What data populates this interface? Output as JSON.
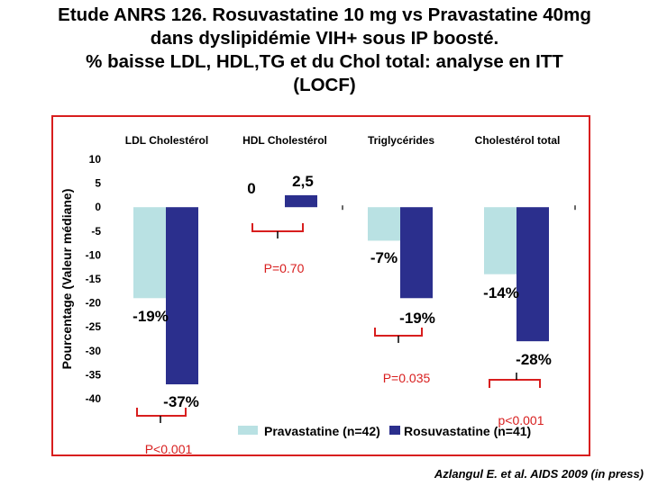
{
  "title": {
    "line1": "Etude ANRS 126. Rosuvastatine 10 mg vs Pravastatine 40mg",
    "line2": "dans dyslipidémie VIH+ sous IP boosté.",
    "line3": "% baisse LDL, HDL,TG et du Chol total: analyse en ITT",
    "line4": "(LOCF)"
  },
  "reference": "Azlangul E. et al. AIDS 2009 (in press)",
  "colors": {
    "pravastatine": "#b9e1e3",
    "rosuvastatine": "#2b2f8d",
    "frame": "#d81e1e",
    "pvalue": "#d81e1e"
  },
  "chart_data": {
    "type": "bar",
    "ylabel": "Pourcentage (Valeur médiane)",
    "ylim": [
      -40,
      10
    ],
    "yticks": [
      "10",
      "5",
      "0",
      "-5",
      "-10",
      "-15",
      "-20",
      "-25",
      "-30",
      "-35",
      "-40"
    ],
    "categories": [
      "LDL Cholestérol",
      "HDL Cholestérol",
      "Triglycérides",
      "Cholestérol total"
    ],
    "series": [
      {
        "name": "Pravastatine (n=42)",
        "values": [
          -19,
          0,
          -7,
          -14
        ]
      },
      {
        "name": "Rosuvastatine (n=41)",
        "values": [
          -37,
          2.5,
          -19,
          -28
        ]
      }
    ],
    "data_labels": {
      "pravastatine": [
        "-19%",
        "0",
        "-7%",
        "-14%"
      ],
      "rosuvastatine": [
        "-37%",
        "2,5",
        "-19%",
        "-28%"
      ]
    },
    "p_values": [
      "P<0.001",
      "P=0.70",
      "P=0.035",
      "p<0.001"
    ],
    "legend_position": "bottom"
  }
}
